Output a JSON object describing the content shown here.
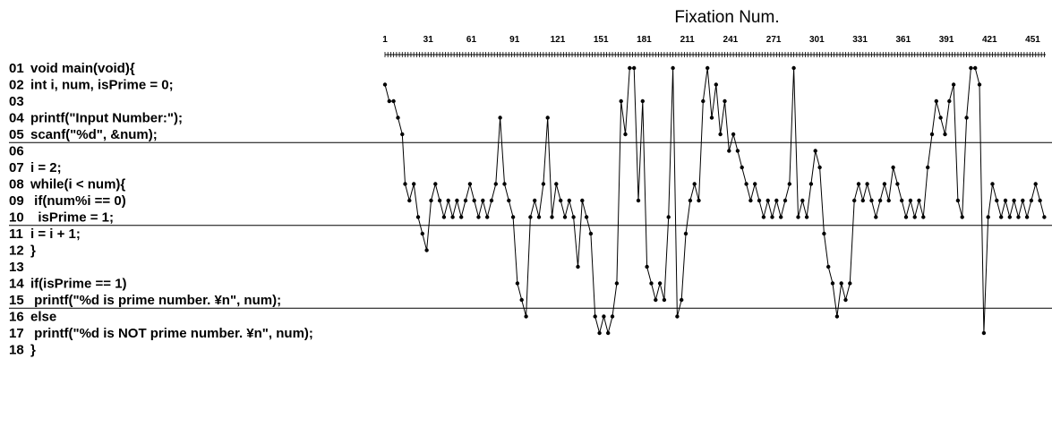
{
  "chart_data": {
    "type": "line",
    "title": "",
    "xlabel": "Fixation Num.",
    "ylabel": "",
    "xlim": [
      1,
      460
    ],
    "x_ticks": [
      "1",
      "31",
      "61",
      "91",
      "121",
      "151",
      "181",
      "211",
      "241",
      "271",
      "301",
      "331",
      "361",
      "391",
      "421",
      "451"
    ],
    "code_lines": [
      {
        "no": "01",
        "text": "void main(void){"
      },
      {
        "no": "02",
        "text": "int i, num, isPrime = 0;"
      },
      {
        "no": "03",
        "text": ""
      },
      {
        "no": "04",
        "text": "printf(\"Input Number:\");"
      },
      {
        "no": "05",
        "text": "scanf(\"%d\", &num);"
      },
      {
        "no": "06",
        "text": ""
      },
      {
        "no": "07",
        "text": "i = 2;"
      },
      {
        "no": "08",
        "text": "while(i < num){"
      },
      {
        "no": "09",
        "text": " if(num%i == 0)"
      },
      {
        "no": "10",
        "text": "  isPrime = 1;"
      },
      {
        "no": "11",
        "text": "i = i + 1;"
      },
      {
        "no": "12",
        "text": "}"
      },
      {
        "no": "13",
        "text": ""
      },
      {
        "no": "14",
        "text": "if(isPrime == 1)"
      },
      {
        "no": "15",
        "text": " printf(\"%d is prime number. ¥n\", num);"
      },
      {
        "no": "16",
        "text": "else"
      },
      {
        "no": "17",
        "text": " printf(\"%d is NOT prime number. ¥n\", num);"
      },
      {
        "no": "18",
        "text": "}"
      }
    ],
    "separators_after_line": [
      5,
      10,
      15
    ],
    "series": [
      {
        "color": "#000000",
        "x": [
          1,
          4,
          7,
          10,
          13,
          15,
          18,
          21,
          24,
          27,
          30,
          33,
          36,
          39,
          42,
          45,
          48,
          51,
          54,
          57,
          60,
          63,
          66,
          69,
          72,
          75,
          78,
          81,
          84,
          87,
          90,
          93,
          96,
          99,
          102,
          105,
          108,
          111,
          114,
          117,
          120,
          123,
          126,
          129,
          132,
          135,
          138,
          141,
          144,
          147,
          150,
          153,
          156,
          159,
          162,
          165,
          168,
          171,
          174,
          177,
          180,
          183,
          186,
          189,
          192,
          195,
          198,
          201,
          204,
          207,
          210,
          213,
          216,
          219,
          222,
          225,
          228,
          231,
          234,
          237,
          240,
          243,
          246,
          249,
          252,
          255,
          258,
          261,
          264,
          267,
          270,
          273,
          276,
          279,
          282,
          285,
          288,
          291,
          294,
          297,
          300,
          303,
          306,
          309,
          312,
          315,
          318,
          321,
          324,
          327,
          330,
          333,
          336,
          339,
          342,
          345,
          348,
          351,
          354,
          357,
          360,
          363,
          366,
          369,
          372,
          375,
          378,
          381,
          384,
          387,
          390,
          393,
          396,
          399,
          402,
          405,
          408,
          411,
          414,
          417,
          420,
          423,
          426,
          429,
          432,
          435,
          438,
          441,
          444,
          447,
          450,
          453,
          456,
          459
        ],
        "y": [
          2,
          3,
          3,
          4,
          5,
          8,
          9,
          8,
          10,
          11,
          12,
          9,
          8,
          9,
          10,
          9,
          10,
          9,
          10,
          9,
          8,
          9,
          10,
          9,
          10,
          9,
          8,
          4,
          8,
          9,
          10,
          14,
          15,
          16,
          10,
          9,
          10,
          8,
          4,
          10,
          8,
          9,
          10,
          9,
          10,
          13,
          9,
          10,
          11,
          16,
          17,
          16,
          17,
          16,
          14,
          3,
          5,
          1,
          1,
          9,
          3,
          13,
          14,
          15,
          14,
          15,
          10,
          1,
          16,
          15,
          11,
          9,
          8,
          9,
          3,
          1,
          4,
          2,
          5,
          3,
          6,
          5,
          6,
          7,
          8,
          9,
          8,
          9,
          10,
          9,
          10,
          9,
          10,
          9,
          8,
          1,
          10,
          9,
          10,
          8,
          6,
          7,
          11,
          13,
          14,
          16,
          14,
          15,
          14,
          9,
          8,
          9,
          8,
          9,
          10,
          9,
          8,
          9,
          7,
          8,
          9,
          10,
          9,
          10,
          9,
          10,
          7,
          5,
          3,
          4,
          5,
          3,
          2,
          9,
          10,
          4,
          1,
          1,
          2,
          17,
          10,
          8,
          9,
          10,
          9,
          10,
          9,
          10,
          9,
          10,
          9,
          8,
          9,
          10
        ]
      }
    ],
    "grid": false,
    "legend": "none"
  }
}
